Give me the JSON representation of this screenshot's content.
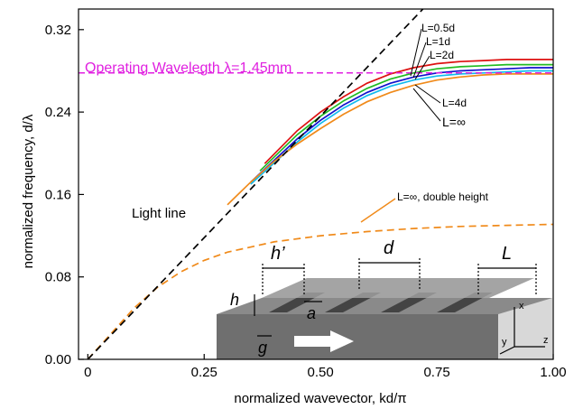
{
  "chart_data": {
    "type": "line",
    "xlabel": "normalized wavevector, kd/π",
    "ylabel": "normalized frequency, d/λ",
    "xlim": [
      -0.02,
      1.0
    ],
    "ylim": [
      0.0,
      0.34
    ],
    "x_ticks": [
      0,
      0.25,
      0.5,
      0.75,
      1.0
    ],
    "x_tick_labels": [
      "0",
      "0.25",
      "0.50",
      "0.75",
      "1.00"
    ],
    "y_ticks": [
      0.0,
      0.08,
      0.16,
      0.24,
      0.32
    ],
    "y_tick_labels": [
      "0.00",
      "0.08",
      "0.16",
      "0.24",
      "0.32"
    ],
    "grid": false,
    "operating_line": {
      "y": 0.278,
      "label": "Operating Wavelegth λ=1.45mm",
      "color": "#e020e0"
    },
    "light_line": {
      "label": "Light line",
      "color": "#000000",
      "x": [
        0,
        0.72
      ],
      "y": [
        0,
        0.36
      ]
    },
    "series": [
      {
        "name": "L=0.5d",
        "color": "#dd1111",
        "x": [
          0.38,
          0.45,
          0.5,
          0.55,
          0.6,
          0.65,
          0.7,
          0.75,
          0.8,
          0.85,
          0.9,
          0.95,
          1.0
        ],
        "y": [
          0.19,
          0.222,
          0.24,
          0.255,
          0.268,
          0.277,
          0.283,
          0.287,
          0.289,
          0.29,
          0.291,
          0.291,
          0.291
        ]
      },
      {
        "name": "L=1d",
        "color": "#22bb22",
        "x": [
          0.37,
          0.45,
          0.5,
          0.55,
          0.6,
          0.65,
          0.7,
          0.75,
          0.8,
          0.85,
          0.9,
          0.95,
          1.0
        ],
        "y": [
          0.183,
          0.218,
          0.236,
          0.251,
          0.263,
          0.272,
          0.278,
          0.282,
          0.284,
          0.285,
          0.286,
          0.286,
          0.286
        ]
      },
      {
        "name": "L=2d",
        "color": "#1111cc",
        "x": [
          0.35,
          0.45,
          0.5,
          0.55,
          0.6,
          0.65,
          0.7,
          0.75,
          0.8,
          0.85,
          0.9,
          0.95,
          1.0
        ],
        "y": [
          0.172,
          0.214,
          0.232,
          0.247,
          0.259,
          0.268,
          0.274,
          0.278,
          0.28,
          0.281,
          0.282,
          0.283,
          0.283
        ]
      },
      {
        "name": "L=4d",
        "color": "#11bbee",
        "x": [
          0.35,
          0.45,
          0.5,
          0.55,
          0.6,
          0.65,
          0.7,
          0.75,
          0.8,
          0.85,
          0.9,
          0.95,
          1.0
        ],
        "y": [
          0.17,
          0.211,
          0.229,
          0.244,
          0.256,
          0.265,
          0.271,
          0.275,
          0.277,
          0.278,
          0.279,
          0.28,
          0.28
        ]
      },
      {
        "name": "L=∞",
        "color": "#f08a1a",
        "x": [
          0.3,
          0.35,
          0.4,
          0.45,
          0.5,
          0.55,
          0.6,
          0.65,
          0.7,
          0.75,
          0.8,
          0.85,
          0.9,
          0.95,
          1.0
        ],
        "y": [
          0.15,
          0.172,
          0.192,
          0.209,
          0.224,
          0.238,
          0.25,
          0.259,
          0.266,
          0.271,
          0.274,
          0.276,
          0.277,
          0.277,
          0.277
        ]
      },
      {
        "name": "L=∞, double height",
        "color": "#f08a1a",
        "dashed": true,
        "x": [
          0,
          0.05,
          0.1,
          0.15,
          0.2,
          0.25,
          0.3,
          0.4,
          0.5,
          0.6,
          0.7,
          0.8,
          0.9,
          1.0
        ],
        "y": [
          0,
          0.025,
          0.05,
          0.07,
          0.085,
          0.096,
          0.104,
          0.114,
          0.12,
          0.124,
          0.127,
          0.129,
          0.13,
          0.131
        ]
      }
    ],
    "annotations": [
      "L=0.5d",
      "L=1d",
      "L=2d",
      "L=4d",
      "L=∞",
      "L=∞, double height",
      "Light line"
    ]
  },
  "inset": {
    "labels": {
      "h_prime": "h’",
      "d": "d",
      "L": "L",
      "h": "h",
      "a": "a",
      "g": "g"
    },
    "axes": {
      "x": "x",
      "y": "y",
      "z": "z"
    }
  }
}
